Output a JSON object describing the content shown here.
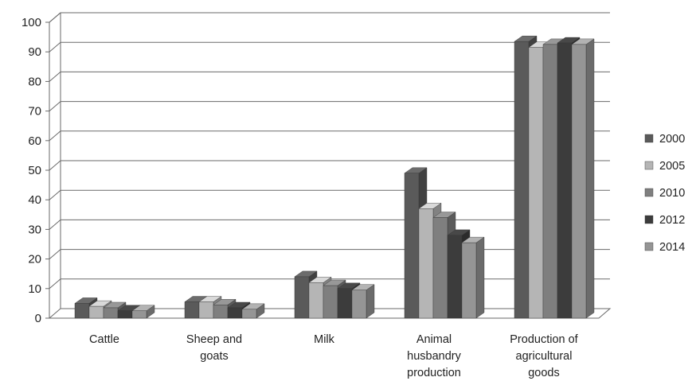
{
  "chart_data": {
    "type": "bar",
    "style": "3d-clustered-column",
    "title": "",
    "xlabel": "",
    "ylabel": "",
    "ylim": [
      0,
      100
    ],
    "yticks": [
      0,
      10,
      20,
      30,
      40,
      50,
      60,
      70,
      80,
      90,
      100
    ],
    "grid": true,
    "legend_position": "right",
    "categories": [
      [
        "Cattle"
      ],
      [
        "Sheep and",
        "goats"
      ],
      [
        "Milk"
      ],
      [
        "Animal",
        "husbandry",
        "production"
      ],
      [
        "Production of",
        "agricultural",
        "goods"
      ]
    ],
    "series": [
      {
        "name": "2000",
        "color": "#5a5a5a",
        "values": [
          5,
          5.5,
          14,
          49,
          93.5
        ]
      },
      {
        "name": "2005",
        "color": "#b5b5b5",
        "values": [
          4,
          5.5,
          12,
          37,
          91.5
        ]
      },
      {
        "name": "2010",
        "color": "#7f7f7f",
        "values": [
          3.5,
          4.5,
          11,
          34,
          92.5
        ]
      },
      {
        "name": "2012",
        "color": "#3c3c3c",
        "values": [
          2.5,
          3.5,
          10,
          28,
          93
        ]
      },
      {
        "name": "2014",
        "color": "#959595",
        "values": [
          2.5,
          3,
          9.5,
          25.5,
          92.5
        ]
      }
    ]
  }
}
